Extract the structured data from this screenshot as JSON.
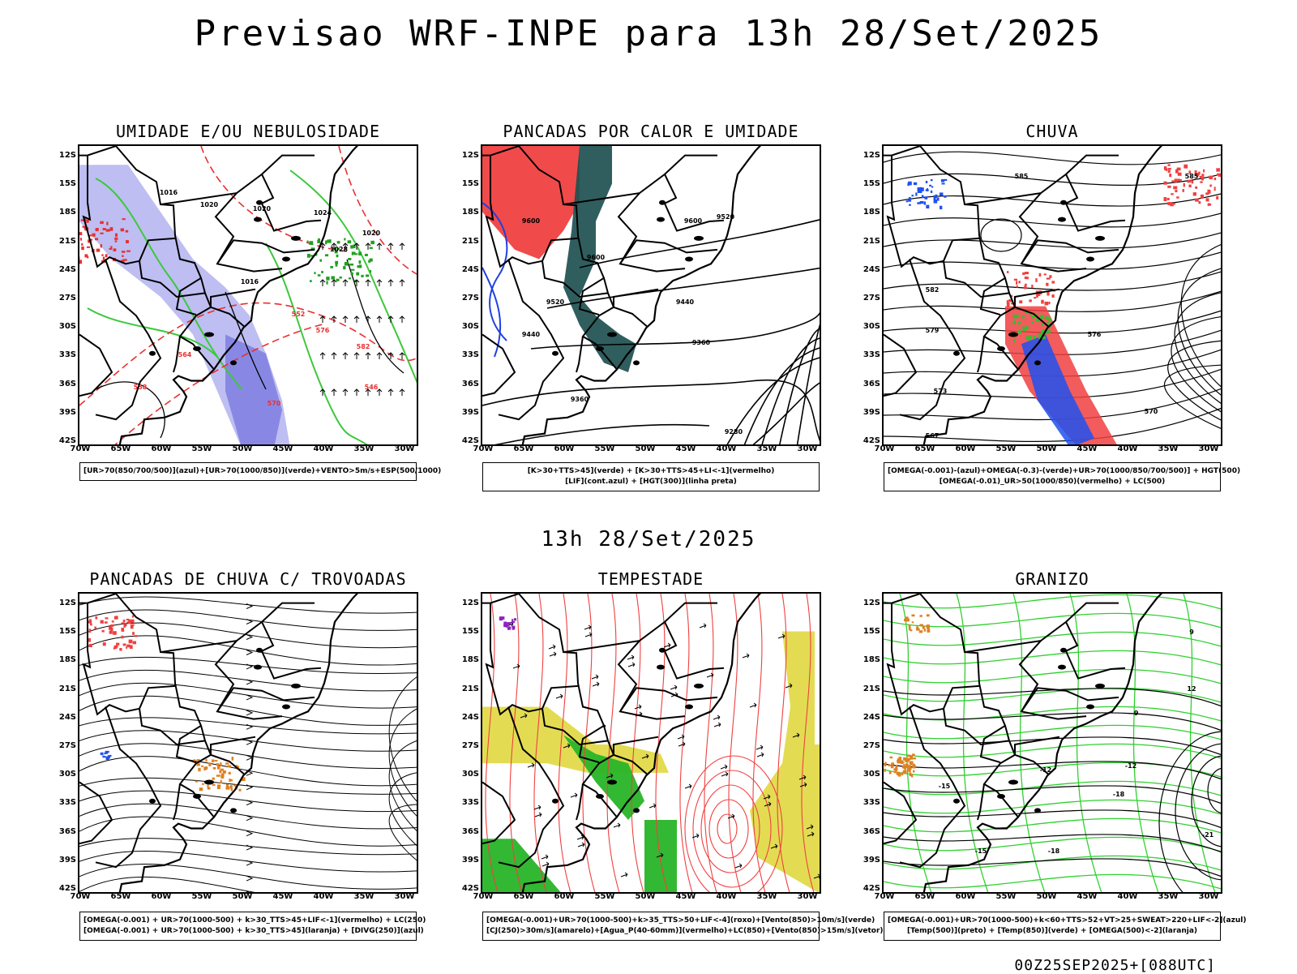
{
  "title": "Previsao WRF-INPE  para 13h 28/Set/2025",
  "mid_title": "13h 28/Set/2025",
  "footer": "00Z25SEP2025+[088UTC]",
  "lat_ticks": [
    "12S",
    "15S",
    "18S",
    "21S",
    "24S",
    "27S",
    "30S",
    "33S",
    "36S",
    "39S",
    "42S"
  ],
  "lon_ticks": [
    "70W",
    "65W",
    "60W",
    "55W",
    "50W",
    "45W",
    "40W",
    "35W",
    "30W"
  ],
  "panels": [
    {
      "id": "umidade",
      "title": "UMIDADE E/OU NEBULOSIDADE",
      "caption": [
        "[UR>70(850/700/500)](azul)+[UR>70(1000/850)](verde)+VENTO>5m/s+ESP(500/1000)"
      ],
      "colors": {
        "humid_high": "#a8a8ee",
        "humid_low": "#3cc83c",
        "contour": "#e83030"
      },
      "contour_labels": [
        "1016",
        "1020",
        "1020",
        "1024",
        "1028",
        "1020",
        "1016",
        "552",
        "558",
        "564",
        "570",
        "576",
        "582",
        "546"
      ]
    },
    {
      "id": "pancadas_calor",
      "title": "PANCADAS POR CALOR E UMIDADE",
      "caption": [
        "[K>30+TTS>45](verde) + [K>30+TTS>45+LI<-1](vermelho)",
        "[LIF](cont.azul) + [HGT(300)](linha preta)"
      ],
      "colors": {
        "red": "#f04040",
        "teal": "#1e5050",
        "blue": "#2040e0"
      },
      "contour_labels": [
        "9600",
        "9600",
        "9600",
        "9520",
        "9520",
        "9440",
        "9440",
        "9360",
        "9360",
        "9280"
      ]
    },
    {
      "id": "chuva",
      "title": "CHUVA",
      "caption": [
        "[OMEGA(-0.001)-(azul)+OMEGA(-0.3)-(verde)+UR>70(1000/850/700/500)] + HGT(500)",
        "[OMEGA(-0.01)_UR>50(1000/850)(vermelho) + LC(500)"
      ],
      "colors": {
        "red": "#f04040",
        "blue": "#2050f0",
        "green": "#30c030"
      },
      "contour_labels": [
        "585",
        "585",
        "582",
        "579",
        "576",
        "573",
        "570",
        "567"
      ]
    },
    {
      "id": "pancadas_trovoadas",
      "title": "PANCADAS DE CHUVA C/ TROVOADAS",
      "caption": [
        "[OMEGA(-0.001) + UR>70(1000-500) + k>30_TTS>45+LIF<-1](vermelho) + LC(250)",
        "[OMEGA(-0.001) + UR>70(1000-500) + k>30_TTS>45](laranja) + [DIVG(250)](azul)"
      ],
      "colors": {
        "red": "#f04040",
        "orange": "#e08020",
        "blue": "#2050f0"
      },
      "contour_labels": []
    },
    {
      "id": "tempestade",
      "title": "TEMPESTADE",
      "caption": [
        "[OMEGA(-0.001)+UR>70(1000-500)+k>35_TTS>50+LIF<-4](roxo)+[Vento(850)>10m/s](verde)",
        "[CJ(250)>30m/s](amarelo)+[Agua_P(40-60mm)](vermelho)+LC(850)+[Vento(850)>15m/s](vetor)"
      ],
      "colors": {
        "yellow": "#e0d840",
        "green": "#28b428",
        "red": "#f04040",
        "purple": "#9020c0"
      },
      "contour_labels": []
    },
    {
      "id": "granizo",
      "title": "GRANIZO",
      "caption": [
        "[OMEGA(-0.001)+UR>70(1000-500)+k<60+TTS>52+VT>25+SWEAT>220+LIF<-2](azul)",
        "[Temp(500)](preto) + [Temp(850)](verde) + [OMEGA(500)<-2](laranja)"
      ],
      "colors": {
        "green": "#30d030",
        "orange": "#e08020"
      },
      "contour_labels": [
        "-9",
        "-12",
        "-12",
        "-15",
        "-15",
        "-18",
        "-18",
        "-21",
        "9",
        "12"
      ]
    }
  ]
}
